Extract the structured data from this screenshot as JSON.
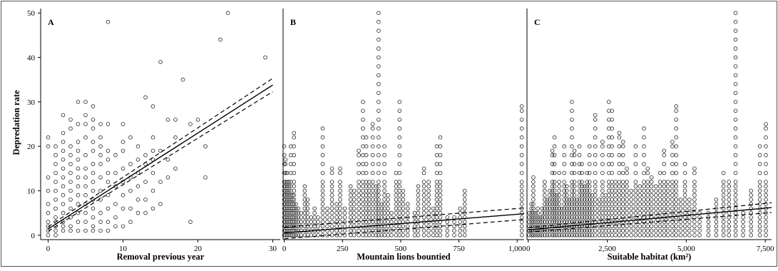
{
  "figure": {
    "ylabel": "Depredation rate"
  },
  "chart_data": [
    {
      "type": "scatter",
      "panel_label": "A",
      "xlabel": "Removal previous year",
      "ylabel": "Depredation rate",
      "xlim": [
        -1,
        31
      ],
      "ylim": [
        -1,
        51
      ],
      "xticks": [
        0,
        10,
        20,
        30
      ],
      "xtick_labels": [
        "0",
        "10",
        "20",
        "30"
      ],
      "yticks": [
        0,
        10,
        20,
        30,
        40,
        50
      ],
      "ytick_labels": [
        "0",
        "10",
        "20",
        "30",
        "40",
        "50"
      ],
      "grid": false,
      "fit": {
        "intercept": 1.4,
        "slope": 1.08,
        "x_range": [
          0,
          30
        ],
        "ci_offset_at_end": 1.5,
        "ci_offset_at_start": 0.5
      },
      "points": [
        [
          0,
          0
        ],
        [
          0,
          1
        ],
        [
          0,
          2
        ],
        [
          0,
          3
        ],
        [
          0,
          5
        ],
        [
          0,
          7
        ],
        [
          0,
          10
        ],
        [
          0,
          13
        ],
        [
          0,
          20
        ],
        [
          0,
          22
        ],
        [
          1,
          0
        ],
        [
          1,
          1
        ],
        [
          1,
          2
        ],
        [
          1,
          3
        ],
        [
          1,
          4
        ],
        [
          1,
          6
        ],
        [
          1,
          8
        ],
        [
          1,
          10
        ],
        [
          1,
          12
        ],
        [
          1,
          14
        ],
        [
          1,
          16
        ],
        [
          1,
          18
        ],
        [
          1,
          20
        ],
        [
          2,
          1
        ],
        [
          2,
          2
        ],
        [
          2,
          3
        ],
        [
          2,
          5
        ],
        [
          2,
          7
        ],
        [
          2,
          9
        ],
        [
          2,
          11
        ],
        [
          2,
          13
        ],
        [
          2,
          15
        ],
        [
          2,
          17
        ],
        [
          2,
          19
        ],
        [
          2,
          21
        ],
        [
          2,
          23
        ],
        [
          2,
          27
        ],
        [
          3,
          1
        ],
        [
          3,
          2
        ],
        [
          3,
          4
        ],
        [
          3,
          6
        ],
        [
          3,
          8
        ],
        [
          3,
          10
        ],
        [
          3,
          12
        ],
        [
          3,
          14
        ],
        [
          3,
          16
        ],
        [
          3,
          18
        ],
        [
          3,
          20
        ],
        [
          3,
          24
        ],
        [
          3,
          26
        ],
        [
          4,
          1
        ],
        [
          4,
          3
        ],
        [
          4,
          5
        ],
        [
          4,
          7
        ],
        [
          4,
          9
        ],
        [
          4,
          11
        ],
        [
          4,
          13
        ],
        [
          4,
          15
        ],
        [
          4,
          17
        ],
        [
          4,
          19
        ],
        [
          4,
          21
        ],
        [
          4,
          25
        ],
        [
          4,
          30
        ],
        [
          5,
          1
        ],
        [
          5,
          3
        ],
        [
          5,
          5
        ],
        [
          5,
          7
        ],
        [
          5,
          9
        ],
        [
          5,
          11
        ],
        [
          5,
          13
        ],
        [
          5,
          15
        ],
        [
          5,
          18
        ],
        [
          5,
          22
        ],
        [
          5,
          25
        ],
        [
          5,
          27
        ],
        [
          5,
          30
        ],
        [
          6,
          1
        ],
        [
          6,
          2
        ],
        [
          6,
          4
        ],
        [
          6,
          6
        ],
        [
          6,
          8
        ],
        [
          6,
          10
        ],
        [
          6,
          12
        ],
        [
          6,
          14
        ],
        [
          6,
          16
        ],
        [
          6,
          19
        ],
        [
          6,
          21
        ],
        [
          6,
          24
        ],
        [
          6,
          26
        ],
        [
          6,
          29
        ],
        [
          7,
          1
        ],
        [
          7,
          3
        ],
        [
          7,
          5
        ],
        [
          7,
          8
        ],
        [
          7,
          10
        ],
        [
          7,
          13
        ],
        [
          7,
          16
        ],
        [
          7,
          18
        ],
        [
          7,
          20
        ],
        [
          7,
          22
        ],
        [
          7,
          25
        ],
        [
          8,
          1
        ],
        [
          8,
          3
        ],
        [
          8,
          6
        ],
        [
          8,
          9
        ],
        [
          8,
          12
        ],
        [
          8,
          14
        ],
        [
          8,
          17
        ],
        [
          8,
          19
        ],
        [
          8,
          25
        ],
        [
          8,
          48
        ],
        [
          9,
          2
        ],
        [
          9,
          4
        ],
        [
          9,
          7
        ],
        [
          9,
          11
        ],
        [
          9,
          14
        ],
        [
          9,
          18
        ],
        [
          10,
          2
        ],
        [
          10,
          6
        ],
        [
          10,
          9
        ],
        [
          10,
          12
        ],
        [
          10,
          15
        ],
        [
          10,
          19
        ],
        [
          10,
          21
        ],
        [
          10,
          25
        ],
        [
          11,
          3
        ],
        [
          11,
          6
        ],
        [
          11,
          10
        ],
        [
          11,
          13
        ],
        [
          11,
          16
        ],
        [
          11,
          22
        ],
        [
          12,
          5
        ],
        [
          12,
          8
        ],
        [
          12,
          11
        ],
        [
          12,
          14
        ],
        [
          12,
          17
        ],
        [
          12,
          20
        ],
        [
          13,
          5
        ],
        [
          13,
          8
        ],
        [
          13,
          12
        ],
        [
          13,
          16
        ],
        [
          13,
          18
        ],
        [
          13,
          31
        ],
        [
          14,
          6
        ],
        [
          14,
          10
        ],
        [
          14,
          14
        ],
        [
          14,
          17
        ],
        [
          14,
          19
        ],
        [
          14,
          22
        ],
        [
          14,
          29
        ],
        [
          15,
          7
        ],
        [
          15,
          12
        ],
        [
          15,
          19
        ],
        [
          15,
          39
        ],
        [
          16,
          13
        ],
        [
          16,
          17
        ],
        [
          16,
          26
        ],
        [
          17,
          15
        ],
        [
          17,
          22
        ],
        [
          17,
          26
        ],
        [
          18,
          35
        ],
        [
          19,
          3
        ],
        [
          19,
          25
        ],
        [
          20,
          26
        ],
        [
          21,
          13
        ],
        [
          21,
          20
        ],
        [
          23,
          44
        ],
        [
          24,
          50
        ],
        [
          29,
          40
        ]
      ]
    },
    {
      "type": "scatter",
      "panel_label": "B",
      "xlabel": "Mountain lions bountied",
      "ylabel": "",
      "xlim": [
        -5,
        1030
      ],
      "ylim": [
        -1,
        51
      ],
      "xticks": [
        0,
        250,
        500,
        750,
        1000
      ],
      "xtick_labels": [
        "0",
        "250",
        "500",
        "750",
        "1,000"
      ],
      "grid": false,
      "fit": {
        "intercept": 0.5,
        "slope": 0.0042,
        "x_range": [
          0,
          1030
        ],
        "ci_offset_at_end": 1.3,
        "ci_offset_at_start": 1.3
      },
      "columns": [
        {
          "x": 0,
          "y_max": 20
        },
        {
          "x": 5,
          "y_max": 17
        },
        {
          "x": 12,
          "y_max": 14
        },
        {
          "x": 20,
          "y_max": 12
        },
        {
          "x": 28,
          "y_max": 20
        },
        {
          "x": 35,
          "y_max": 9
        },
        {
          "x": 42,
          "y_max": 23
        },
        {
          "x": 50,
          "y_max": 7
        },
        {
          "x": 60,
          "y_max": 6
        },
        {
          "x": 72,
          "y_max": 5
        },
        {
          "x": 88,
          "y_max": 11
        },
        {
          "x": 100,
          "y_max": 8
        },
        {
          "x": 115,
          "y_max": 4
        },
        {
          "x": 130,
          "y_max": 6
        },
        {
          "x": 145,
          "y_max": 4
        },
        {
          "x": 165,
          "y_max": 24
        },
        {
          "x": 185,
          "y_max": 6
        },
        {
          "x": 205,
          "y_max": 15
        },
        {
          "x": 225,
          "y_max": 7
        },
        {
          "x": 240,
          "y_max": 15
        },
        {
          "x": 260,
          "y_max": 6
        },
        {
          "x": 285,
          "y_max": 11
        },
        {
          "x": 300,
          "y_max": 10
        },
        {
          "x": 320,
          "y_max": 19
        },
        {
          "x": 338,
          "y_max": 30
        },
        {
          "x": 352,
          "y_max": 22
        },
        {
          "x": 365,
          "y_max": 12
        },
        {
          "x": 380,
          "y_max": 25
        },
        {
          "x": 395,
          "y_max": 11
        },
        {
          "x": 405,
          "y_max": 50
        },
        {
          "x": 418,
          "y_max": 7
        },
        {
          "x": 430,
          "y_max": 20
        },
        {
          "x": 445,
          "y_max": 9
        },
        {
          "x": 460,
          "y_max": 5
        },
        {
          "x": 480,
          "y_max": 14
        },
        {
          "x": 495,
          "y_max": 30
        },
        {
          "x": 510,
          "y_max": 10
        },
        {
          "x": 530,
          "y_max": 7
        },
        {
          "x": 560,
          "y_max": 5
        },
        {
          "x": 575,
          "y_max": 11
        },
        {
          "x": 600,
          "y_max": 15
        },
        {
          "x": 620,
          "y_max": 12
        },
        {
          "x": 640,
          "y_max": 6
        },
        {
          "x": 655,
          "y_max": 20
        },
        {
          "x": 670,
          "y_max": 22
        },
        {
          "x": 700,
          "y_max": 4
        },
        {
          "x": 730,
          "y_max": 4
        },
        {
          "x": 755,
          "y_max": 6
        },
        {
          "x": 775,
          "y_max": 10
        },
        {
          "x": 1020,
          "y_max": 29
        }
      ]
    },
    {
      "type": "scatter",
      "panel_label": "C",
      "xlabel": "Suitable habitat (km²)",
      "ylabel": "",
      "xlim": [
        -40,
        7700
      ],
      "ylim": [
        -1,
        51
      ],
      "xticks": [
        0,
        2500,
        5000,
        7500
      ],
      "xtick_labels": [
        "0",
        "2,500",
        "5,000",
        "7,500"
      ],
      "grid": false,
      "fit": {
        "intercept": 1.2,
        "slope": 0.00065,
        "x_range": [
          0,
          7700
        ],
        "ci_offset_at_end": 1.1,
        "ci_offset_at_start": 0.5
      },
      "columns": [
        {
          "x": 30,
          "y_max": 5
        },
        {
          "x": 100,
          "y_max": 7
        },
        {
          "x": 160,
          "y_max": 13
        },
        {
          "x": 230,
          "y_max": 5
        },
        {
          "x": 300,
          "y_max": 6
        },
        {
          "x": 370,
          "y_max": 4
        },
        {
          "x": 440,
          "y_max": 6
        },
        {
          "x": 520,
          "y_max": 12
        },
        {
          "x": 600,
          "y_max": 8
        },
        {
          "x": 680,
          "y_max": 10
        },
        {
          "x": 760,
          "y_max": 19
        },
        {
          "x": 830,
          "y_max": 22
        },
        {
          "x": 900,
          "y_max": 9
        },
        {
          "x": 980,
          "y_max": 14
        },
        {
          "x": 1060,
          "y_max": 6
        },
        {
          "x": 1140,
          "y_max": 20
        },
        {
          "x": 1220,
          "y_max": 11
        },
        {
          "x": 1300,
          "y_max": 8
        },
        {
          "x": 1380,
          "y_max": 30
        },
        {
          "x": 1460,
          "y_max": 19
        },
        {
          "x": 1540,
          "y_max": 8
        },
        {
          "x": 1620,
          "y_max": 20
        },
        {
          "x": 1700,
          "y_max": 16
        },
        {
          "x": 1780,
          "y_max": 11
        },
        {
          "x": 1860,
          "y_max": 14
        },
        {
          "x": 1940,
          "y_max": 20
        },
        {
          "x": 2020,
          "y_max": 9
        },
        {
          "x": 2120,
          "y_max": 27
        },
        {
          "x": 2250,
          "y_max": 8
        },
        {
          "x": 2350,
          "y_max": 21
        },
        {
          "x": 2450,
          "y_max": 9
        },
        {
          "x": 2550,
          "y_max": 30
        },
        {
          "x": 2650,
          "y_max": 28
        },
        {
          "x": 2760,
          "y_max": 12
        },
        {
          "x": 2880,
          "y_max": 23
        },
        {
          "x": 3000,
          "y_max": 21
        },
        {
          "x": 3120,
          "y_max": 15
        },
        {
          "x": 3260,
          "y_max": 10
        },
        {
          "x": 3400,
          "y_max": 20
        },
        {
          "x": 3530,
          "y_max": 11
        },
        {
          "x": 3660,
          "y_max": 24
        },
        {
          "x": 3780,
          "y_max": 15
        },
        {
          "x": 3900,
          "y_max": 13
        },
        {
          "x": 4040,
          "y_max": 11
        },
        {
          "x": 4170,
          "y_max": 14
        },
        {
          "x": 4300,
          "y_max": 19
        },
        {
          "x": 4420,
          "y_max": 12
        },
        {
          "x": 4560,
          "y_max": 21
        },
        {
          "x": 4680,
          "y_max": 29
        },
        {
          "x": 4820,
          "y_max": 8
        },
        {
          "x": 4960,
          "y_max": 16
        },
        {
          "x": 5100,
          "y_max": 8
        },
        {
          "x": 5260,
          "y_max": 15
        },
        {
          "x": 5420,
          "y_max": 5
        },
        {
          "x": 5700,
          "y_max": 5
        },
        {
          "x": 5950,
          "y_max": 8
        },
        {
          "x": 6180,
          "y_max": 14
        },
        {
          "x": 6350,
          "y_max": 12
        },
        {
          "x": 6560,
          "y_max": 50
        },
        {
          "x": 6800,
          "y_max": 5
        },
        {
          "x": 7050,
          "y_max": 10
        },
        {
          "x": 7330,
          "y_max": 20
        },
        {
          "x": 7520,
          "y_max": 25
        }
      ]
    }
  ]
}
